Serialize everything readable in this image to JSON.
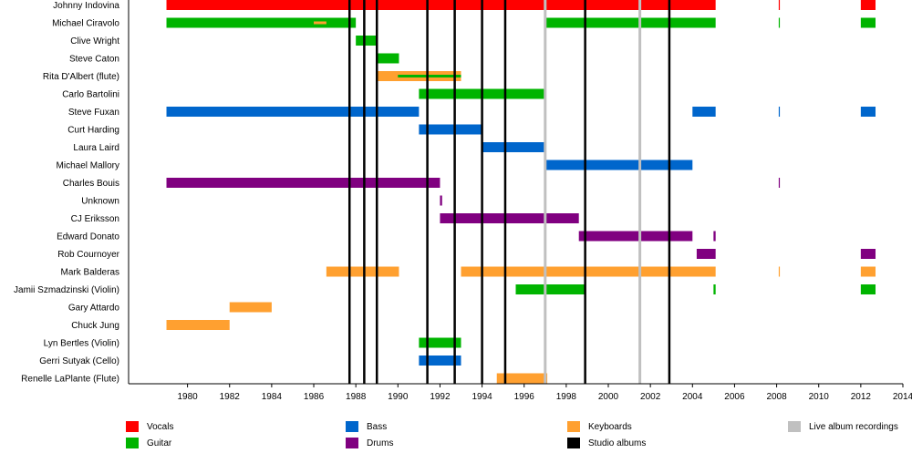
{
  "chart_data": {
    "type": "timeline",
    "x_ticks": [
      "1980",
      "1982",
      "1984",
      "1986",
      "1988",
      "1990",
      "1992",
      "1994",
      "1996",
      "1998",
      "2000",
      "2002",
      "2004",
      "2006",
      "2008",
      "2010",
      "2012",
      "2014"
    ],
    "xlim": [
      1977.2,
      2014
    ],
    "role_colors": {
      "vocals": "#ff0000",
      "guitar": "#00b400",
      "bass": "#0066cc",
      "keyboards": "#ffa030",
      "drums": "#800080",
      "live": "#c0c0c0",
      "studio": "#000000"
    },
    "members": [
      {
        "name": "Johnny Indovina",
        "bars": [
          {
            "role": "vocals",
            "start": 1979,
            "end": 2005.1
          },
          {
            "role": "vocals",
            "start": 2008.1,
            "end": 2008.15
          },
          {
            "role": "vocals",
            "start": 2012,
            "end": 2012.7
          }
        ]
      },
      {
        "name": "Michael Ciravolo",
        "bars": [
          {
            "role": "guitar",
            "start": 1979,
            "end": 1988
          },
          {
            "role": "guitar",
            "start": 1997,
            "end": 2005.1
          },
          {
            "role": "guitar",
            "start": 2008.1,
            "end": 2008.15
          },
          {
            "role": "guitar",
            "start": 2012,
            "end": 2012.7
          }
        ],
        "secondary": [
          {
            "role": "keyboards",
            "start": 1986,
            "end": 1986.6
          }
        ]
      },
      {
        "name": "Clive Wright",
        "bars": [
          {
            "role": "guitar",
            "start": 1988,
            "end": 1989
          }
        ]
      },
      {
        "name": "Steve Caton",
        "bars": [
          {
            "role": "guitar",
            "start": 1989,
            "end": 1990.05
          }
        ]
      },
      {
        "name": "Rita D'Albert (flute)",
        "bars": [
          {
            "role": "keyboards",
            "start": 1989,
            "end": 1993
          }
        ],
        "secondary": [
          {
            "role": "guitar",
            "start": 1990,
            "end": 1993
          }
        ]
      },
      {
        "name": "Carlo Bartolini",
        "bars": [
          {
            "role": "guitar",
            "start": 1991,
            "end": 1997
          }
        ]
      },
      {
        "name": "Steve Fuxan",
        "bars": [
          {
            "role": "bass",
            "start": 1979,
            "end": 1991
          },
          {
            "role": "bass",
            "start": 2004,
            "end": 2005.1
          },
          {
            "role": "bass",
            "start": 2008.1,
            "end": 2008.15
          },
          {
            "role": "bass",
            "start": 2012,
            "end": 2012.7
          }
        ]
      },
      {
        "name": "Curt Harding",
        "bars": [
          {
            "role": "bass",
            "start": 1991,
            "end": 1994
          }
        ]
      },
      {
        "name": "Laura Laird",
        "bars": [
          {
            "role": "bass",
            "start": 1994,
            "end": 1997
          }
        ]
      },
      {
        "name": "Michael Mallory",
        "bars": [
          {
            "role": "bass",
            "start": 1997,
            "end": 2004
          }
        ]
      },
      {
        "name": "Charles Bouis",
        "bars": [
          {
            "role": "drums",
            "start": 1979,
            "end": 1992
          },
          {
            "role": "drums",
            "start": 2008.1,
            "end": 2008.15
          }
        ]
      },
      {
        "name": "Unknown",
        "bars": [
          {
            "role": "drums",
            "start": 1992,
            "end": 1992.1
          }
        ]
      },
      {
        "name": "CJ Eriksson",
        "bars": [
          {
            "role": "drums",
            "start": 1992,
            "end": 1998.6
          }
        ]
      },
      {
        "name": "Edward Donato",
        "bars": [
          {
            "role": "drums",
            "start": 1998.6,
            "end": 2004
          },
          {
            "role": "drums",
            "start": 2005,
            "end": 2005.1
          }
        ]
      },
      {
        "name": "Rob Cournoyer",
        "bars": [
          {
            "role": "drums",
            "start": 2004.2,
            "end": 2005.1
          },
          {
            "role": "drums",
            "start": 2012,
            "end": 2012.7
          }
        ]
      },
      {
        "name": "Mark Balderas",
        "bars": [
          {
            "role": "keyboards",
            "start": 1986.6,
            "end": 1990.05
          },
          {
            "role": "keyboards",
            "start": 1993,
            "end": 2005.1
          },
          {
            "role": "keyboards",
            "start": 2008.1,
            "end": 2008.15
          },
          {
            "role": "keyboards",
            "start": 2012,
            "end": 2012.7
          }
        ]
      },
      {
        "name": "Jamii Szmadzinski (Violin)",
        "bars": [
          {
            "role": "guitar",
            "start": 1995.6,
            "end": 1998.9
          },
          {
            "role": "guitar",
            "start": 2005,
            "end": 2005.1
          },
          {
            "role": "guitar",
            "start": 2012,
            "end": 2012.7
          }
        ]
      },
      {
        "name": "Gary Attardo",
        "bars": [
          {
            "role": "keyboards",
            "start": 1982,
            "end": 1984
          }
        ]
      },
      {
        "name": "Chuck Jung",
        "bars": [
          {
            "role": "keyboards",
            "start": 1979,
            "end": 1982
          }
        ]
      },
      {
        "name": "Lyn Bertles (Violin)",
        "bars": [
          {
            "role": "guitar",
            "start": 1991,
            "end": 1993
          }
        ]
      },
      {
        "name": "Gerri Sutyak (Cello)",
        "bars": [
          {
            "role": "bass",
            "start": 1991,
            "end": 1993
          }
        ]
      },
      {
        "name": "Renelle LaPlante (Flute)",
        "bars": [
          {
            "role": "keyboards",
            "start": 1994.7,
            "end": 1997.1
          }
        ]
      }
    ],
    "studio_albums": [
      1987.7,
      1988.4,
      1989,
      1991.4,
      1992.7,
      1994,
      1995.1,
      1998.9,
      2002.9
    ],
    "live_albums": [
      1997,
      2001.5
    ],
    "legend": [
      {
        "label": "Vocals",
        "role": "vocals"
      },
      {
        "label": "Guitar",
        "role": "guitar"
      },
      {
        "label": "Bass",
        "role": "bass"
      },
      {
        "label": "Drums",
        "role": "drums"
      },
      {
        "label": "Keyboards",
        "role": "keyboards"
      },
      {
        "label": "Studio albums",
        "role": "studio"
      },
      {
        "label": "Live album recordings",
        "role": "live"
      }
    ]
  }
}
